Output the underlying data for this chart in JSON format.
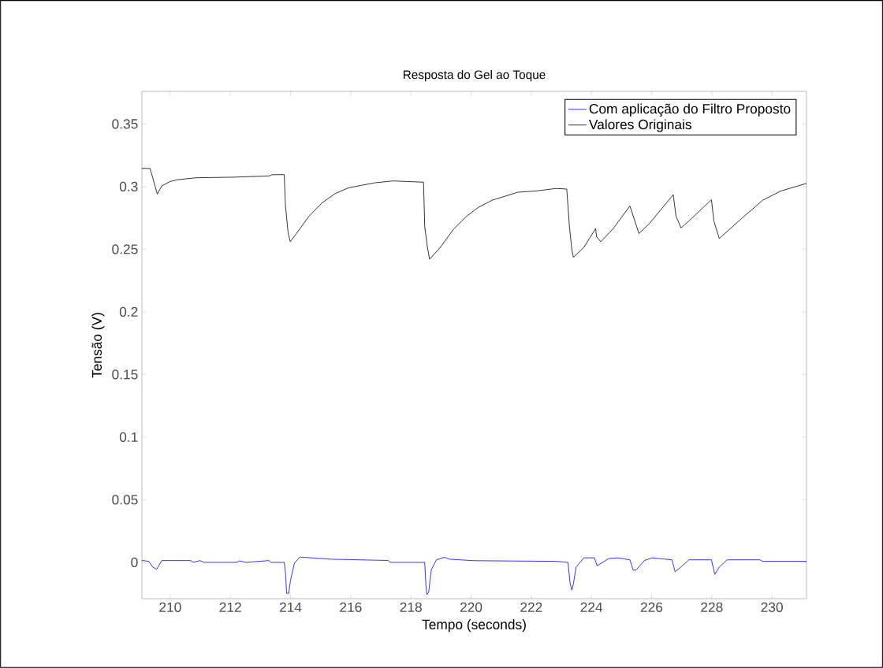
{
  "chart_data": {
    "type": "line",
    "title": "Resposta do Gel ao Toque",
    "xlabel": "Tempo (seconds)",
    "ylabel": "Tensão (V)",
    "xlim": [
      209.06,
      231.15
    ],
    "ylim": [
      -0.029,
      0.376
    ],
    "xticks": [
      210,
      212,
      214,
      216,
      218,
      220,
      222,
      224,
      226,
      228,
      230
    ],
    "yticks": [
      0,
      0.05,
      0.1,
      0.15,
      0.2,
      0.25,
      0.3,
      0.35
    ],
    "grid": false,
    "legend": "top right",
    "line_style": "solid",
    "marker": "none",
    "series": [
      {
        "name": "Com aplicação do Filtro Proposto",
        "color": "#0000ff",
        "x": [
          209.06,
          209.29,
          209.42,
          209.55,
          209.72,
          210.68,
          210.77,
          210.99,
          211.12,
          212.21,
          212.3,
          212.52,
          213.28,
          213.35,
          213.79,
          213.83,
          213.87,
          213.94,
          214.0,
          214.13,
          214.31,
          214.44,
          215.36,
          217.24,
          217.31,
          217.59,
          218.46,
          218.5,
          218.53,
          218.59,
          218.68,
          218.85,
          219.12,
          219.29,
          220.12,
          222.83,
          223.22,
          223.29,
          223.35,
          223.4,
          223.49,
          223.75,
          224.1,
          224.19,
          224.58,
          224.89,
          225.28,
          225.39,
          225.49,
          225.76,
          226.02,
          226.68,
          226.78,
          227.03,
          227.24,
          227.99,
          228.1,
          228.25,
          228.51,
          229.6,
          229.69,
          231.15
        ],
        "values": [
          0.0015,
          0.0008,
          -0.0038,
          -0.0055,
          0.0014,
          0.0014,
          0.0,
          0.0014,
          0.0,
          0.0,
          0.0012,
          0.0,
          0.0014,
          0.0,
          0.0,
          -0.008,
          -0.0247,
          -0.0247,
          -0.0143,
          -0.0006,
          0.0042,
          0.004,
          0.0025,
          0.0015,
          0.0,
          0.0,
          0.0,
          -0.0184,
          -0.0258,
          -0.024,
          -0.0059,
          0.0021,
          0.004,
          0.0025,
          0.0013,
          0.0008,
          0.0,
          -0.0164,
          -0.0222,
          -0.0174,
          -0.0038,
          0.0036,
          0.0036,
          -0.0027,
          0.003,
          0.0036,
          0.002,
          -0.0063,
          -0.006,
          0.0014,
          0.0036,
          0.002,
          -0.0075,
          -0.0027,
          0.002,
          0.002,
          -0.0096,
          -0.0038,
          0.002,
          0.002,
          0.0008,
          0.0008
        ]
      },
      {
        "name": "Valores Originais",
        "color": "#000000",
        "x": [
          209.06,
          209.33,
          209.42,
          209.57,
          209.72,
          209.99,
          210.25,
          210.86,
          212.13,
          213.3,
          213.39,
          213.79,
          213.83,
          213.92,
          213.99,
          214.18,
          214.62,
          215.05,
          215.49,
          215.93,
          216.36,
          216.8,
          217.41,
          218.42,
          218.46,
          218.55,
          218.62,
          218.98,
          219.42,
          219.86,
          220.25,
          220.69,
          221.56,
          222.17,
          222.83,
          223.18,
          223.27,
          223.35,
          223.4,
          223.75,
          224.14,
          224.17,
          224.31,
          224.71,
          225.28,
          225.58,
          225.93,
          226.72,
          226.81,
          226.98,
          227.24,
          227.99,
          228.07,
          228.25,
          228.99,
          229.69,
          230.3,
          231.15
        ],
        "values": [
          0.3145,
          0.3145,
          0.307,
          0.294,
          0.3005,
          0.304,
          0.3055,
          0.307,
          0.3075,
          0.3085,
          0.3095,
          0.3095,
          0.285,
          0.263,
          0.256,
          0.262,
          0.2765,
          0.287,
          0.2945,
          0.299,
          0.301,
          0.303,
          0.3045,
          0.3035,
          0.268,
          0.2515,
          0.242,
          0.2515,
          0.266,
          0.2765,
          0.2835,
          0.289,
          0.2955,
          0.2965,
          0.2985,
          0.298,
          0.268,
          0.2495,
          0.2435,
          0.2515,
          0.2665,
          0.26,
          0.256,
          0.266,
          0.2845,
          0.2625,
          0.2705,
          0.2935,
          0.2765,
          0.267,
          0.2725,
          0.2895,
          0.2725,
          0.2585,
          0.2745,
          0.289,
          0.2965,
          0.3025
        ]
      }
    ]
  }
}
